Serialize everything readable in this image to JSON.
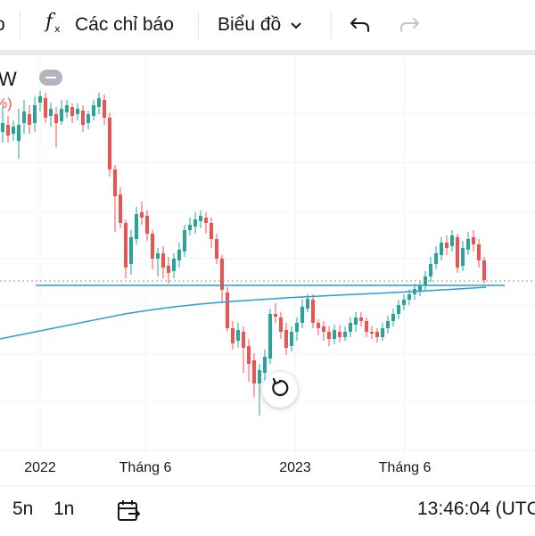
{
  "toolbar": {
    "indicators_label": "Các chỉ báo",
    "chart_type_label": "Biểu đồ",
    "left_partial": "o",
    "icons": [
      "function-icon",
      "chevron-down-icon",
      "undo-icon",
      "redo-icon"
    ]
  },
  "chart": {
    "legend_partial": "W",
    "legend_partial_pct": "%)",
    "x_axis_labels": [
      "2022",
      "Tháng 6",
      "2023",
      "Tháng 6"
    ],
    "colors": {
      "up": "#26a69a",
      "down": "#ef5350",
      "ma_line": "#2a9bd7",
      "hline": "#2a9bd7"
    }
  },
  "chart_data": {
    "type": "candlestick",
    "title": "",
    "xlabel": "",
    "ylabel": "",
    "x_axis_labels": [
      "2022",
      "Tháng 6",
      "2023",
      "Tháng 6"
    ],
    "series": [
      {
        "values_description": "weekly candles, red = down, green = up"
      }
    ]
  },
  "bottom": {
    "range_5y": "5n",
    "range_1y": "1n",
    "time": "13:46:04 (UTC"
  }
}
